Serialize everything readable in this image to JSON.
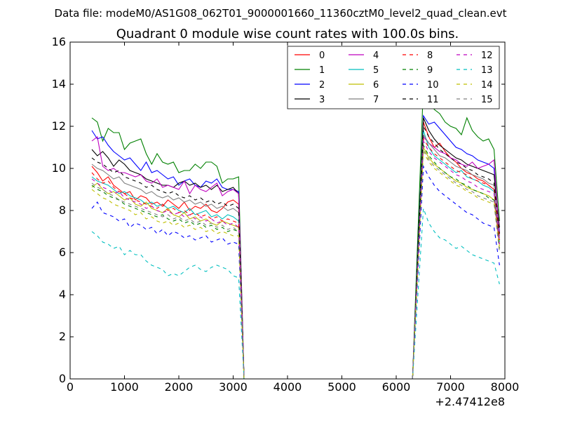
{
  "figure_suptitle": "Data file: modeM0/AS1G08_062T01_9000001660_11360cztM0_level2_quad_clean.evt",
  "chart_data": {
    "type": "line",
    "title": "Quadrant 0 module wise count rates with 100.0s bins.",
    "xlabel": "",
    "ylabel": "",
    "x_offset_label": "+2.47412e8",
    "xlim": [
      0,
      8000
    ],
    "ylim": [
      0,
      16
    ],
    "xticks": [
      0,
      1000,
      2000,
      3000,
      4000,
      5000,
      6000,
      7000,
      8000
    ],
    "yticks": [
      0,
      2,
      4,
      6,
      8,
      10,
      12,
      14,
      16
    ],
    "xtick_labels": [
      "0",
      "1000",
      "2000",
      "3000",
      "4000",
      "5000",
      "6000",
      "7000",
      "8000"
    ],
    "ytick_labels": [
      "0",
      "2",
      "4",
      "6",
      "8",
      "10",
      "12",
      "14",
      "16"
    ],
    "grid": false,
    "legend_position": "top-right",
    "gap": {
      "start": 3200,
      "end": 6300
    },
    "x": {
      "segment1_start": 400,
      "segment1_end": 3100,
      "segment1_step": 100,
      "segment2_start": 6500,
      "segment2_end": 7900,
      "segment2_step": 100
    },
    "series": [
      {
        "name": "0",
        "color": "#ff0000",
        "dash": "solid",
        "seg1": [
          10.1,
          9.8,
          9.4,
          9.6,
          9.2,
          9.0,
          8.8,
          8.9,
          8.5,
          8.7,
          8.6,
          8.3,
          8.4,
          8.2,
          8.5,
          8.3,
          8.1,
          8.4,
          8.0,
          8.2,
          8.1,
          8.3,
          8.0,
          7.9,
          8.1,
          8.4,
          8.5,
          8.3
        ],
        "seg2": [
          12.2,
          11.5,
          11.0,
          11.2,
          10.8,
          10.5,
          10.3,
          10.0,
          9.8,
          9.7,
          9.5,
          9.4,
          9.2,
          9.0,
          6.9
        ]
      },
      {
        "name": "1",
        "color": "#008000",
        "dash": "solid",
        "seg1": [
          12.4,
          12.2,
          11.3,
          11.9,
          11.7,
          11.7,
          10.9,
          11.2,
          11.3,
          11.4,
          10.7,
          10.2,
          10.7,
          10.3,
          10.2,
          10.3,
          9.8,
          9.9,
          9.9,
          10.2,
          10.0,
          10.3,
          10.3,
          10.1,
          9.3,
          9.5,
          9.5,
          9.6
        ],
        "seg2": [
          14.0,
          13.3,
          12.8,
          12.6,
          12.2,
          12.0,
          11.9,
          11.6,
          12.4,
          11.8,
          11.5,
          11.3,
          11.4,
          10.9,
          7.5
        ]
      },
      {
        "name": "2",
        "color": "#0000ff",
        "dash": "solid",
        "seg1": [
          11.8,
          11.4,
          11.5,
          11.1,
          10.8,
          10.6,
          10.4,
          10.5,
          10.2,
          9.9,
          10.3,
          9.8,
          9.9,
          9.7,
          9.5,
          9.6,
          9.2,
          9.4,
          9.5,
          9.2,
          9.1,
          9.4,
          9.3,
          9.5,
          9.1,
          9.0,
          9.0,
          8.9
        ],
        "seg2": [
          12.5,
          12.1,
          12.2,
          11.9,
          11.6,
          11.3,
          11.0,
          10.9,
          10.7,
          10.6,
          10.4,
          10.3,
          10.2,
          10.0,
          7.0
        ]
      },
      {
        "name": "3",
        "color": "#000000",
        "dash": "solid",
        "seg1": [
          10.9,
          10.6,
          10.8,
          10.5,
          10.1,
          10.4,
          10.2,
          9.9,
          9.8,
          9.7,
          9.5,
          9.4,
          9.3,
          9.2,
          9.2,
          9.1,
          9.3,
          9.4,
          9.2,
          9.3,
          9.1,
          9.2,
          9.0,
          9.2,
          8.9,
          9.0,
          9.1,
          8.8
        ],
        "seg2": [
          12.4,
          11.8,
          11.4,
          11.1,
          10.9,
          10.7,
          10.5,
          10.4,
          10.2,
          10.1,
          10.0,
          9.9,
          9.8,
          9.7,
          7.2
        ]
      },
      {
        "name": "4",
        "color": "#bf00bf",
        "dash": "solid",
        "seg1": [
          11.3,
          11.5,
          10.1,
          9.9,
          10.0,
          9.8,
          9.8,
          9.7,
          9.6,
          9.7,
          9.4,
          9.3,
          9.5,
          9.1,
          9.2,
          9.1,
          9.0,
          9.4,
          8.8,
          9.2,
          9.0,
          8.9,
          9.1,
          9.3,
          8.7,
          8.9,
          9.0,
          8.8
        ],
        "seg2": [
          11.5,
          11.2,
          11.0,
          10.8,
          10.7,
          10.5,
          10.4,
          10.2,
          10.1,
          10.3,
          10.0,
          10.1,
          10.2,
          10.4,
          6.8
        ]
      },
      {
        "name": "5",
        "color": "#00bfbf",
        "dash": "solid",
        "seg1": [
          9.6,
          9.4,
          9.3,
          9.2,
          9.0,
          8.8,
          8.9,
          8.7,
          8.6,
          8.5,
          8.3,
          8.4,
          8.2,
          8.3,
          8.1,
          8.2,
          8.0,
          7.9,
          8.1,
          7.8,
          7.9,
          8.0,
          7.7,
          7.8,
          7.6,
          7.8,
          7.7,
          7.5
        ],
        "seg2": [
          11.8,
          11.0,
          10.6,
          10.4,
          10.2,
          10.0,
          9.8,
          9.9,
          9.6,
          9.5,
          9.4,
          9.2,
          9.1,
          8.9,
          6.5
        ]
      },
      {
        "name": "6",
        "color": "#bfbf00",
        "dash": "solid",
        "seg1": [
          9.1,
          9.3,
          9.0,
          8.8,
          8.9,
          8.7,
          8.5,
          8.6,
          8.3,
          8.2,
          8.4,
          8.1,
          8.0,
          7.9,
          8.1,
          7.8,
          7.7,
          7.9,
          7.6,
          7.7,
          7.5,
          7.6,
          7.4,
          7.3,
          7.5,
          7.4,
          7.3,
          7.2
        ],
        "seg2": [
          11.0,
          10.5,
          10.2,
          10.0,
          9.8,
          9.6,
          9.4,
          9.3,
          9.1,
          9.0,
          8.9,
          8.8,
          8.7,
          8.5,
          6.3
        ]
      },
      {
        "name": "7",
        "color": "#808080",
        "dash": "solid",
        "seg1": [
          10.2,
          10.0,
          9.9,
          9.7,
          9.5,
          9.6,
          9.3,
          9.2,
          9.1,
          9.0,
          8.8,
          8.9,
          8.7,
          8.6,
          8.7,
          8.5,
          8.6,
          8.4,
          8.5,
          8.3,
          8.4,
          8.2,
          8.3,
          8.1,
          8.2,
          8.0,
          8.1,
          7.9
        ],
        "seg2": [
          11.6,
          11.2,
          10.9,
          10.6,
          10.5,
          10.3,
          10.1,
          10.0,
          9.9,
          9.7,
          9.6,
          9.5,
          9.3,
          9.2,
          6.7
        ]
      },
      {
        "name": "8",
        "color": "#ff0000",
        "dash": "dashed",
        "seg1": [
          9.8,
          9.5,
          9.3,
          9.4,
          9.1,
          8.9,
          8.8,
          8.6,
          8.5,
          8.4,
          8.3,
          8.2,
          8.1,
          8.3,
          8.0,
          8.1,
          7.9,
          8.0,
          7.8,
          7.9,
          7.7,
          7.8,
          7.6,
          7.7,
          7.5,
          7.6,
          7.5,
          7.4
        ],
        "seg2": [
          11.4,
          11.0,
          10.7,
          10.5,
          10.3,
          10.1,
          9.9,
          9.8,
          9.7,
          9.5,
          9.4,
          9.3,
          9.2,
          9.0,
          6.6
        ]
      },
      {
        "name": "9",
        "color": "#008000",
        "dash": "dashed",
        "seg1": [
          9.2,
          9.0,
          8.9,
          8.7,
          8.6,
          8.5,
          8.3,
          8.2,
          8.1,
          8.0,
          7.9,
          7.8,
          7.7,
          7.8,
          7.6,
          7.5,
          7.6,
          7.4,
          7.5,
          7.3,
          7.4,
          7.2,
          7.3,
          7.1,
          7.2,
          7.0,
          7.1,
          7.0
        ],
        "seg2": [
          11.1,
          10.6,
          10.3,
          10.0,
          9.8,
          9.6,
          9.5,
          9.3,
          9.2,
          9.0,
          8.9,
          8.8,
          8.6,
          8.5,
          6.2
        ]
      },
      {
        "name": "10",
        "color": "#0000ff",
        "dash": "dashed",
        "seg1": [
          8.1,
          8.4,
          7.9,
          7.8,
          7.7,
          7.5,
          7.6,
          7.2,
          7.4,
          7.3,
          7.1,
          7.2,
          6.9,
          7.1,
          6.8,
          7.0,
          6.9,
          6.7,
          6.8,
          6.6,
          6.7,
          6.8,
          6.5,
          6.6,
          6.7,
          6.4,
          6.5,
          6.4
        ],
        "seg2": [
          10.1,
          9.6,
          9.2,
          8.9,
          8.7,
          8.5,
          8.3,
          8.1,
          7.9,
          7.8,
          7.6,
          7.4,
          7.3,
          7.2,
          5.4
        ]
      },
      {
        "name": "11",
        "color": "#000000",
        "dash": "dashed",
        "seg1": [
          10.5,
          10.3,
          10.2,
          10.0,
          9.8,
          9.9,
          9.6,
          9.5,
          9.4,
          9.3,
          9.1,
          9.2,
          9.0,
          8.9,
          8.8,
          8.9,
          8.7,
          8.6,
          8.7,
          8.5,
          8.6,
          8.4,
          8.5,
          8.3,
          8.4,
          8.2,
          8.3,
          8.1
        ],
        "seg2": [
          12.0,
          11.5,
          11.2,
          10.9,
          10.7,
          10.5,
          10.3,
          10.2,
          10.0,
          9.9,
          9.7,
          9.6,
          9.5,
          9.3,
          6.9
        ]
      },
      {
        "name": "12",
        "color": "#bf00bf",
        "dash": "dashed",
        "seg1": [
          9.5,
          9.3,
          9.1,
          9.0,
          8.8,
          8.9,
          8.6,
          8.5,
          8.4,
          8.3,
          8.1,
          8.2,
          8.0,
          7.9,
          8.0,
          7.8,
          7.9,
          7.7,
          7.8,
          7.6,
          7.7,
          7.5,
          7.6,
          7.4,
          7.5,
          7.3,
          7.4,
          7.2
        ],
        "seg2": [
          11.3,
          10.8,
          10.5,
          10.3,
          10.1,
          9.9,
          9.7,
          9.6,
          9.4,
          9.3,
          9.1,
          9.0,
          8.9,
          8.8,
          6.4
        ]
      },
      {
        "name": "13",
        "color": "#00bfbf",
        "dash": "dashed",
        "seg1": [
          7.0,
          6.8,
          6.5,
          6.4,
          6.2,
          6.3,
          5.9,
          6.1,
          5.9,
          5.9,
          5.6,
          5.4,
          5.3,
          5.2,
          4.9,
          5.0,
          4.9,
          5.1,
          5.3,
          5.4,
          5.2,
          5.1,
          5.3,
          5.4,
          5.3,
          5.2,
          4.9,
          4.8
        ],
        "seg2": [
          8.1,
          7.4,
          7.0,
          6.7,
          6.6,
          6.4,
          6.2,
          6.3,
          6.1,
          5.9,
          5.8,
          5.7,
          5.6,
          5.5,
          4.5
        ]
      },
      {
        "name": "14",
        "color": "#bfbf00",
        "dash": "dashed",
        "seg1": [
          9.0,
          8.8,
          8.6,
          8.5,
          8.3,
          8.2,
          8.1,
          8.0,
          7.8,
          7.9,
          7.6,
          7.7,
          7.5,
          7.4,
          7.5,
          7.3,
          7.4,
          7.2,
          7.3,
          7.1,
          7.2,
          7.0,
          7.1,
          6.9,
          7.0,
          6.9,
          6.8,
          6.8
        ],
        "seg2": [
          10.8,
          10.3,
          10.0,
          9.8,
          9.6,
          9.4,
          9.2,
          9.1,
          8.9,
          8.8,
          8.6,
          8.5,
          8.4,
          8.3,
          6.1
        ]
      },
      {
        "name": "15",
        "color": "#808080",
        "dash": "dashed",
        "seg1": [
          9.3,
          9.1,
          9.0,
          8.8,
          8.7,
          8.5,
          8.4,
          8.3,
          8.2,
          8.1,
          8.0,
          7.9,
          7.8,
          7.7,
          7.8,
          7.6,
          7.7,
          7.5,
          7.6,
          7.4,
          7.5,
          7.3,
          7.4,
          7.2,
          7.3,
          7.1,
          7.2,
          7.0
        ],
        "seg2": [
          10.9,
          10.4,
          10.1,
          9.9,
          9.7,
          9.5,
          9.3,
          9.2,
          9.0,
          8.9,
          8.7,
          8.6,
          8.5,
          8.4,
          6.0
        ]
      }
    ]
  }
}
